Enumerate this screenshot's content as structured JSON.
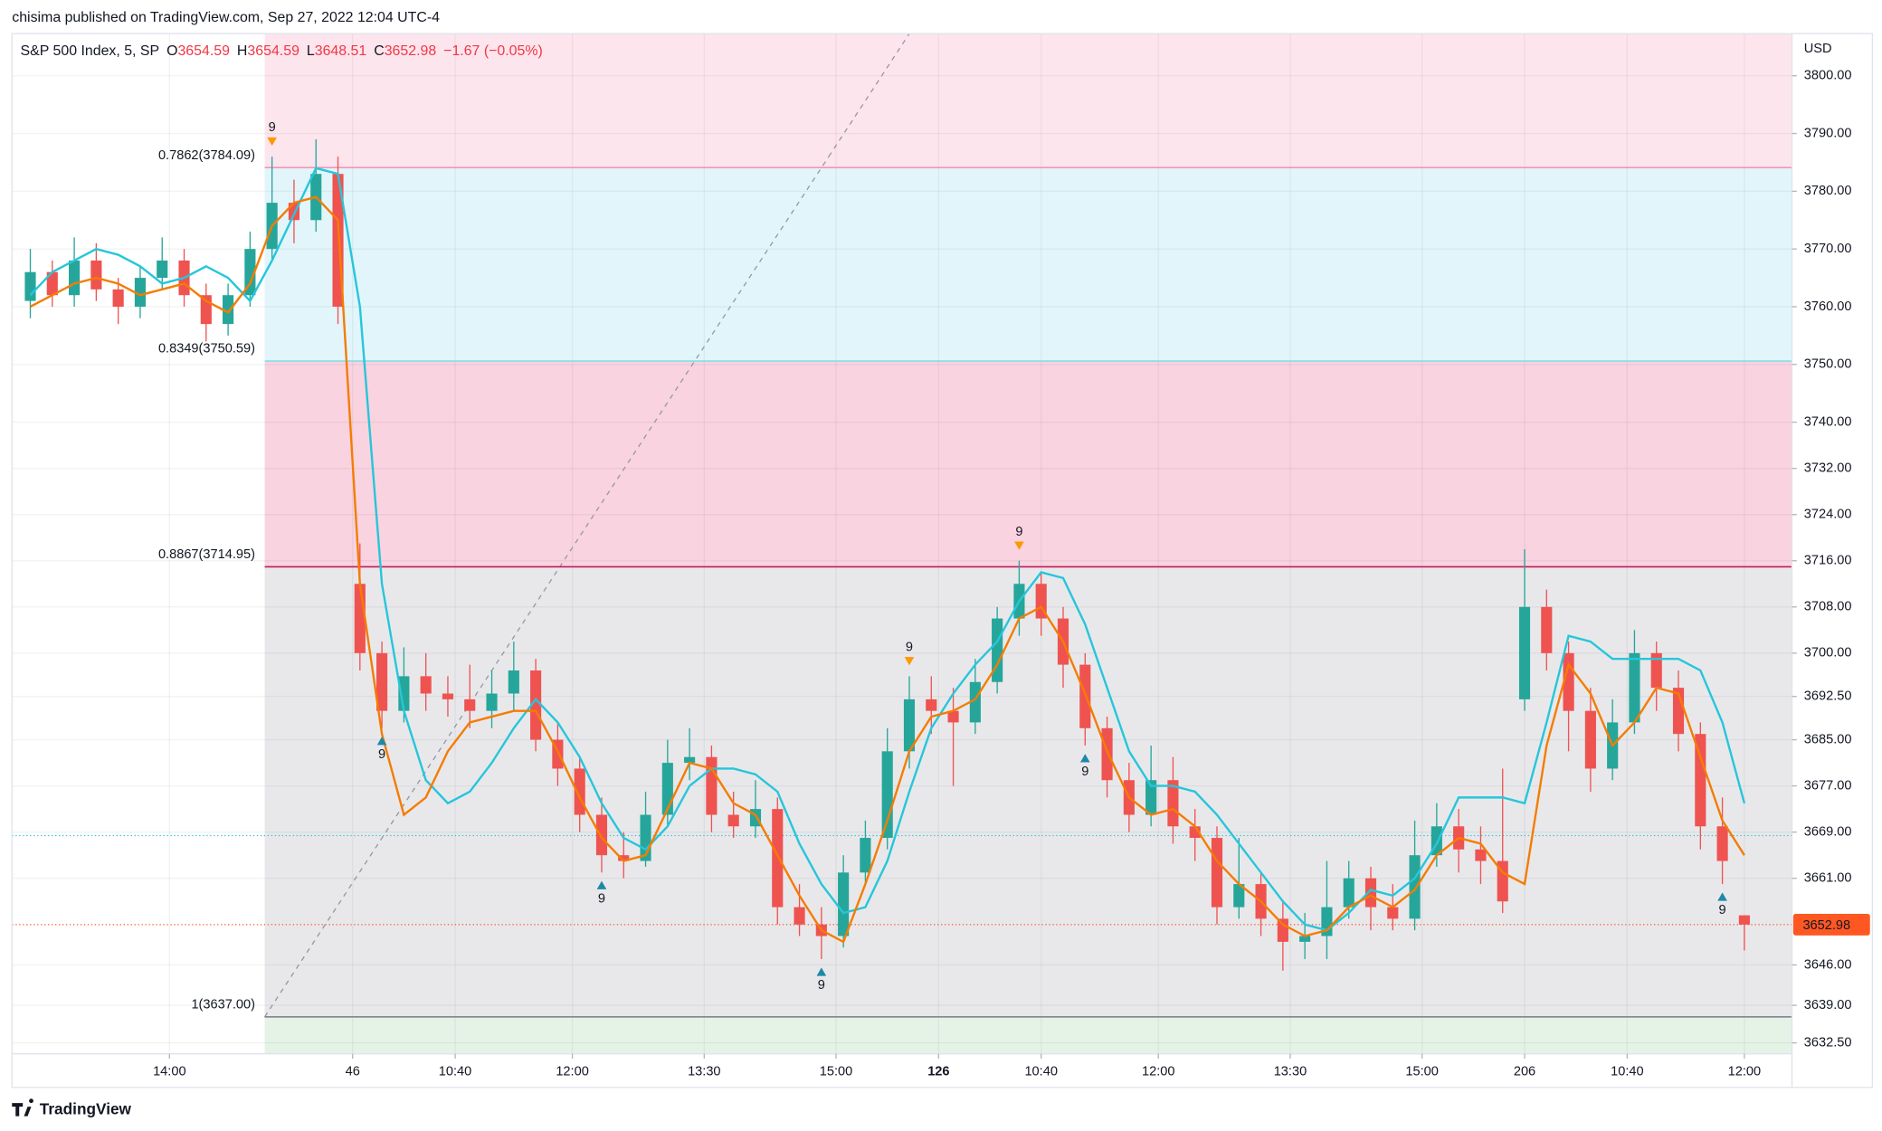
{
  "published": "chisima published on TradingView.com, Sep 27, 2022 12:04 UTC-4",
  "footer": "TradingView",
  "chart_data": {
    "type": "candlestick",
    "header": {
      "symbol": "S&P 500 Index, 5, SP",
      "o_label": "O",
      "open": 3654.59,
      "h_label": "H",
      "high": 3654.59,
      "l_label": "L",
      "low": 3648.51,
      "c_label": "C",
      "close": 3652.98,
      "change": "−1.67 (−0.05%)"
    },
    "currency": "USD",
    "up_color": "#26a69a",
    "down_color": "#ef5350",
    "x": [
      2,
      5,
      8,
      11,
      14,
      17,
      20,
      23,
      26,
      29,
      32,
      35,
      38,
      41,
      44,
      47,
      50,
      53,
      56,
      59,
      62,
      65,
      68,
      71,
      74,
      77,
      80,
      83,
      86,
      89,
      92,
      95,
      98,
      101,
      104,
      107,
      110,
      113,
      116,
      119,
      122,
      125,
      128,
      131,
      134,
      137,
      140,
      143,
      146,
      149,
      152,
      155,
      158,
      161,
      164,
      167,
      170,
      173,
      176,
      179,
      182,
      185,
      188,
      191,
      194,
      197,
      200,
      203,
      206,
      209,
      212,
      215,
      218,
      221,
      224,
      227,
      230,
      233,
      236
    ],
    "open": [
      3761,
      3766,
      3762,
      3768,
      3763,
      3760,
      3765,
      3768,
      3762,
      3757,
      3762,
      3770,
      3778,
      3775,
      3783,
      3712,
      3700,
      3690,
      3696,
      3693,
      3692,
      3690,
      3693,
      3697,
      3685,
      3680,
      3672,
      3665,
      3664,
      3672,
      3681,
      3682,
      3672,
      3670,
      3673,
      3656,
      3653,
      3651,
      3662,
      3668,
      3683,
      3692,
      3690,
      3688,
      3695,
      3706,
      3712,
      3706,
      3698,
      3687,
      3678,
      3672,
      3678,
      3670,
      3668,
      3656,
      3660,
      3654,
      3650,
      3651,
      3656,
      3661,
      3656,
      3654,
      3665,
      3670,
      3666,
      3664,
      3692,
      3708,
      3700,
      3690,
      3680,
      3688,
      3700,
      3694,
      3686,
      3670,
      3654.59
    ],
    "high": [
      3770,
      3768,
      3772,
      3771,
      3765,
      3767,
      3772,
      3770,
      3764,
      3764,
      3773,
      3786,
      3782,
      3789,
      3786,
      3719,
      3702,
      3701,
      3700,
      3696,
      3698,
      3697,
      3702,
      3699,
      3688,
      3682,
      3675,
      3669,
      3676,
      3685,
      3687,
      3684,
      3676,
      3678,
      3675,
      3660,
      3656,
      3665,
      3671,
      3687,
      3696,
      3696,
      3694,
      3699,
      3708,
      3716,
      3714,
      3708,
      3700,
      3689,
      3681,
      3684,
      3682,
      3673,
      3670,
      3668,
      3662,
      3657,
      3655,
      3664,
      3664,
      3663,
      3660,
      3671,
      3674,
      3673,
      3670,
      3680,
      3718,
      3711,
      3702,
      3694,
      3692,
      3704,
      3702,
      3697,
      3688,
      3675,
      3654.59
    ],
    "low": [
      3758,
      3760,
      3760,
      3761,
      3757,
      3758,
      3763,
      3760,
      3754,
      3755,
      3760,
      3768,
      3771,
      3773,
      3757,
      3697,
      3687,
      3688,
      3690,
      3689,
      3687,
      3687,
      3690,
      3683,
      3677,
      3669,
      3662,
      3661,
      3663,
      3670,
      3678,
      3669,
      3668,
      3668,
      3653,
      3651,
      3647,
      3649,
      3660,
      3666,
      3680,
      3686,
      3677,
      3686,
      3693,
      3703,
      3703,
      3694,
      3684,
      3675,
      3669,
      3670,
      3667,
      3664,
      3653,
      3654,
      3651,
      3645,
      3647,
      3647,
      3654,
      3652,
      3652,
      3652,
      3663,
      3662,
      3660,
      3655,
      3690,
      3697,
      3683,
      3676,
      3678,
      3686,
      3690,
      3683,
      3666,
      3660,
      3648.51
    ],
    "close": [
      3766,
      3762,
      3768,
      3763,
      3760,
      3765,
      3768,
      3762,
      3757,
      3762,
      3770,
      3778,
      3775,
      3783,
      3760,
      3700,
      3690,
      3696,
      3693,
      3692,
      3690,
      3693,
      3697,
      3685,
      3680,
      3672,
      3665,
      3664,
      3672,
      3681,
      3682,
      3672,
      3670,
      3673,
      3656,
      3653,
      3651,
      3662,
      3668,
      3683,
      3692,
      3690,
      3688,
      3695,
      3706,
      3712,
      3706,
      3698,
      3687,
      3678,
      3672,
      3678,
      3670,
      3668,
      3656,
      3660,
      3654,
      3650,
      3651,
      3656,
      3661,
      3656,
      3654,
      3665,
      3670,
      3666,
      3664,
      3657,
      3708,
      3700,
      3690,
      3680,
      3688,
      3700,
      3694,
      3686,
      3670,
      3664,
      3652.98
    ],
    "moving_averages": [
      {
        "color": "#26c6da",
        "values": [
          3762,
          3766,
          3768,
          3770,
          3769,
          3767,
          3764,
          3765,
          3767,
          3765,
          3761,
          3768,
          3776,
          3784,
          3783,
          3760,
          3712,
          3690,
          3678,
          3674,
          3676,
          3681,
          3687,
          3692,
          3688,
          3682,
          3674,
          3668,
          3666,
          3670,
          3677,
          3680,
          3680,
          3679,
          3676,
          3667,
          3660,
          3655,
          3656,
          3664,
          3676,
          3687,
          3693,
          3698,
          3702,
          3709,
          3714,
          3713,
          3705,
          3694,
          3683,
          3677,
          3677,
          3676,
          3672,
          3667,
          3662,
          3657,
          3653,
          3652,
          3655,
          3659,
          3658,
          3661,
          3667,
          3675,
          3675,
          3675,
          3674,
          3688,
          3703,
          3702,
          3699,
          3699,
          3699,
          3699,
          3697,
          3688,
          3674
        ]
      },
      {
        "color": "#f57c00",
        "values": [
          3760,
          3762,
          3764,
          3765,
          3764,
          3762,
          3763,
          3764,
          3761,
          3759,
          3764,
          3774,
          3778,
          3779,
          3775,
          3712,
          3686,
          3672,
          3675,
          3683,
          3688,
          3689,
          3690,
          3690,
          3683,
          3675,
          3668,
          3664,
          3665,
          3673,
          3681,
          3680,
          3674,
          3672,
          3665,
          3658,
          3652,
          3650,
          3660,
          3671,
          3683,
          3689,
          3690,
          3692,
          3698,
          3706,
          3708,
          3702,
          3693,
          3683,
          3675,
          3672,
          3673,
          3670,
          3664,
          3660,
          3657,
          3653,
          3651,
          3652,
          3656,
          3658,
          3656,
          3659,
          3665,
          3668,
          3667,
          3662,
          3660,
          3684,
          3698,
          3693,
          3684,
          3688,
          3694,
          3693,
          3682,
          3671,
          3665
        ]
      }
    ],
    "xlim": [
      -0.5,
      242.5
    ],
    "xticks": [
      {
        "value": 21,
        "label": "14:00"
      },
      46,
      {
        "value": 60,
        "label": "10:40"
      },
      {
        "value": 76,
        "label": "12:00"
      },
      {
        "value": 94,
        "label": "13:30"
      },
      {
        "value": 112,
        "label": "15:00"
      },
      126,
      {
        "value": 140,
        "label": "10:40"
      },
      {
        "value": 156,
        "label": "12:00"
      },
      {
        "value": 174,
        "label": "13:30"
      },
      {
        "value": 192,
        "label": "15:00"
      },
      206,
      {
        "value": 220,
        "label": "10:40"
      },
      {
        "value": 236,
        "label": "12:00"
      }
    ],
    "bold_xtick": 126,
    "ylim": [
      3630.6,
      3807.3
    ],
    "yticks": [
      {
        "value": 3800,
        "label": "3800.00"
      },
      {
        "value": 3790,
        "label": "3790.00"
      },
      {
        "value": 3780,
        "label": "3780.00"
      },
      {
        "value": 3770,
        "label": "3770.00"
      },
      {
        "value": 3760,
        "label": "3760.00"
      },
      {
        "value": 3750,
        "label": "3750.00"
      },
      {
        "value": 3740,
        "label": "3740.00"
      },
      {
        "value": 3732,
        "label": "3732.00"
      },
      {
        "value": 3724,
        "label": "3724.00"
      },
      {
        "value": 3716,
        "label": "3716.00"
      },
      {
        "value": 3708,
        "label": "3708.00"
      },
      {
        "value": 3700,
        "label": "3700.00"
      },
      {
        "value": 3692.5,
        "label": "3692.50"
      },
      {
        "value": 3685,
        "label": "3685.00"
      },
      {
        "value": 3677,
        "label": "3677.00"
      },
      {
        "value": 3669,
        "label": "3669.00"
      },
      {
        "value": 3661,
        "label": "3661.00"
      },
      {
        "value": 3646,
        "label": "3646.00"
      },
      {
        "value": 3639,
        "label": "3639.00"
      },
      {
        "value": 3632.5,
        "label": "3632.50"
      }
    ],
    "grid": true,
    "fib": {
      "start_x": 34,
      "levels": [
        {
          "value": 3784.09,
          "label": "0.7862(3784.09)",
          "color": "#f48fb1"
        },
        {
          "value": 3750.59,
          "label": "0.8349(3750.59)",
          "color": "#80deea"
        },
        {
          "value": 3714.95,
          "label": "0.8867(3714.95)",
          "color": "#c2185b"
        },
        {
          "value": 3637,
          "label": "1(3637.00)",
          "color": "#787b86"
        }
      ],
      "zone_colors": [
        "#fde5ed",
        "#e2f5fb",
        "#f9d3e0",
        "#e8e8eb",
        "#e4f3e6"
      ]
    },
    "trendline": {
      "x": [
        34,
        111
      ],
      "y": [
        3637,
        3786
      ],
      "color": "#9598a1"
    },
    "reference_lines": [
      {
        "value": 3668.4,
        "color": "#26c6da"
      },
      {
        "value": 3652.98,
        "color": "#ff5722",
        "show_label": true
      }
    ],
    "signals": [
      {
        "x": 35,
        "label": "9",
        "direction": "down"
      },
      {
        "x": 122,
        "label": "9",
        "direction": "down"
      },
      {
        "x": 137,
        "label": "9",
        "direction": "down"
      },
      {
        "x": 50,
        "label": "9",
        "direction": "up"
      },
      {
        "x": 80,
        "label": "9",
        "direction": "up"
      },
      {
        "x": 110,
        "label": "9",
        "direction": "up"
      },
      {
        "x": 146,
        "label": "9",
        "direction": "up"
      },
      {
        "x": 233,
        "label": "9",
        "direction": "up"
      }
    ]
  }
}
